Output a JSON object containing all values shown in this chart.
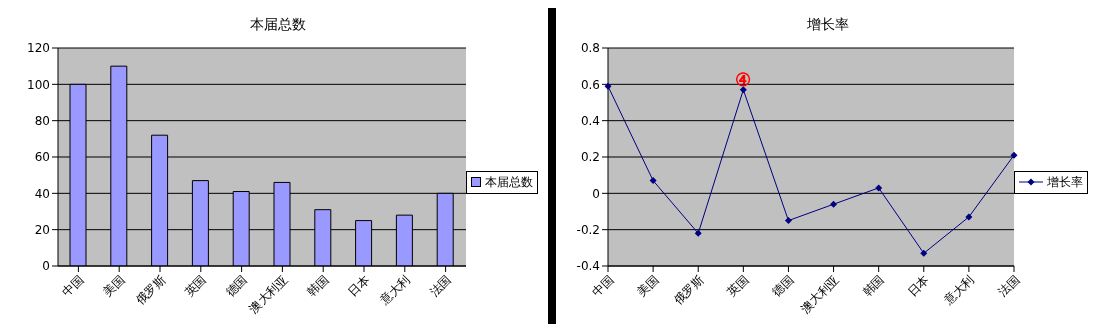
{
  "chart_data": [
    {
      "type": "bar",
      "title": "本届总数",
      "categories": [
        "中国",
        "美国",
        "俄罗斯",
        "英国",
        "德国",
        "澳大利亚",
        "韩国",
        "日本",
        "意大利",
        "法国"
      ],
      "series": [
        {
          "name": "本届总数",
          "color": "#9999ff",
          "values": [
            100,
            110,
            72,
            47,
            41,
            46,
            31,
            25,
            28,
            40
          ]
        }
      ],
      "ylim": [
        0,
        120
      ],
      "yticks": [
        0,
        20,
        40,
        60,
        80,
        100,
        120
      ],
      "grid": "y",
      "legend": "right"
    },
    {
      "type": "line",
      "title": "增长率",
      "categories": [
        "中国",
        "美国",
        "俄罗斯",
        "英国",
        "德国",
        "澳大利亚",
        "韩国",
        "日本",
        "意大利",
        "法国"
      ],
      "series": [
        {
          "name": "增长率",
          "color": "#000080",
          "values": [
            0.59,
            0.07,
            -0.22,
            0.57,
            -0.15,
            -0.06,
            0.03,
            -0.33,
            -0.13,
            0.21
          ]
        }
      ],
      "ylim": [
        -0.4,
        0.8
      ],
      "yticks": [
        -0.4,
        -0.2,
        0,
        0.2,
        0.4,
        0.6,
        0.8
      ],
      "grid": "y",
      "legend": "right",
      "marker": "diamond",
      "line_style": "solid",
      "annotations": [
        {
          "text": "④",
          "x": "英国",
          "y": 0.57
        }
      ]
    }
  ]
}
